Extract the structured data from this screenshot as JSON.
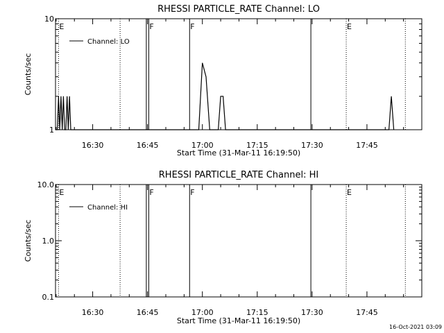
{
  "footer_timestamp": "16-Oct-2021 03:09",
  "chart_data": [
    {
      "type": "line",
      "title": "RHESSI PARTICLE_RATE Channel: LO",
      "xlabel": "Start Time (31-Mar-11 16:19:50)",
      "ylabel": "Counts/sec",
      "y_scale": "log",
      "ylim": [
        1,
        10
      ],
      "xlim": [
        "16:19:50",
        "18:00:00"
      ],
      "y_ticks": [
        {
          "value": 1,
          "label": "1"
        },
        {
          "value": 10,
          "label": "10"
        }
      ],
      "x_ticks": [
        {
          "time": "16:30",
          "label": "16:30"
        },
        {
          "time": "16:45",
          "label": "16:45"
        },
        {
          "time": "17:00",
          "label": "17:00"
        },
        {
          "time": "17:15",
          "label": "17:15"
        },
        {
          "time": "17:30",
          "label": "17:30"
        },
        {
          "time": "17:45",
          "label": "17:45"
        }
      ],
      "legend": {
        "placement": "top-left",
        "entries": [
          "Channel: LO"
        ]
      },
      "series": [
        {
          "name": "Channel: LO",
          "x": [
            "16:19:50",
            "16:20:20",
            "16:20:40",
            "16:21:00",
            "16:21:20",
            "16:21:40",
            "16:22:00",
            "16:22:20",
            "16:22:40",
            "16:23:00",
            "16:23:20",
            "16:23:40",
            "16:24:00",
            "16:24:20",
            "16:24:40",
            "16:25:00",
            "16:25:20",
            "16:58:00",
            "16:59:00",
            "17:00:00",
            "17:01:00",
            "17:02:00",
            "17:03:00",
            "17:04:20",
            "17:05:00",
            "17:05:40",
            "17:06:20",
            "17:51:00",
            "17:51:40",
            "17:52:20"
          ],
          "values": [
            1,
            1,
            2,
            1,
            2,
            1,
            2,
            1,
            1,
            2,
            1,
            2,
            1,
            1,
            1,
            1,
            1,
            1,
            1,
            4,
            3,
            1,
            1,
            1,
            2,
            2,
            1,
            1,
            2,
            1
          ]
        }
      ],
      "markers": [
        {
          "time": "16:20:40",
          "style": "dotted",
          "label": "E"
        },
        {
          "time": "16:37:30",
          "style": "dotted",
          "label": ""
        },
        {
          "time": "16:44:40",
          "style": "solid",
          "label": ""
        },
        {
          "time": "16:45:20",
          "style": "solid",
          "label": "F"
        },
        {
          "time": "16:56:30",
          "style": "solid",
          "label": "F"
        },
        {
          "time": "17:29:40",
          "style": "solid",
          "label": ""
        },
        {
          "time": "17:39:20",
          "style": "dotted",
          "label": "E"
        },
        {
          "time": "17:55:30",
          "style": "dotted",
          "label": ""
        }
      ]
    },
    {
      "type": "line",
      "title": "RHESSI PARTICLE_RATE Channel: HI",
      "xlabel": "Start Time (31-Mar-11 16:19:50)",
      "ylabel": "Counts/sec",
      "y_scale": "log",
      "ylim": [
        0.1,
        10
      ],
      "xlim": [
        "16:19:50",
        "18:00:00"
      ],
      "y_ticks": [
        {
          "value": 0.1,
          "label": "0.1"
        },
        {
          "value": 1,
          "label": "1.0"
        },
        {
          "value": 10,
          "label": "10.0"
        }
      ],
      "x_ticks": [
        {
          "time": "16:30",
          "label": "16:30"
        },
        {
          "time": "16:45",
          "label": "16:45"
        },
        {
          "time": "17:00",
          "label": "17:00"
        },
        {
          "time": "17:15",
          "label": "17:15"
        },
        {
          "time": "17:30",
          "label": "17:30"
        },
        {
          "time": "17:45",
          "label": "17:45"
        }
      ],
      "legend": {
        "placement": "top-left",
        "entries": [
          "Channel: HI"
        ]
      },
      "series": [
        {
          "name": "Channel: HI",
          "x": [],
          "values": []
        }
      ],
      "markers": [
        {
          "time": "16:20:40",
          "style": "dotted",
          "label": "E"
        },
        {
          "time": "16:37:30",
          "style": "dotted",
          "label": ""
        },
        {
          "time": "16:44:40",
          "style": "solid",
          "label": ""
        },
        {
          "time": "16:45:20",
          "style": "solid",
          "label": "F"
        },
        {
          "time": "16:56:30",
          "style": "solid",
          "label": "F"
        },
        {
          "time": "17:29:40",
          "style": "solid",
          "label": ""
        },
        {
          "time": "17:39:20",
          "style": "dotted",
          "label": "E"
        },
        {
          "time": "17:55:30",
          "style": "dotted",
          "label": ""
        }
      ]
    }
  ]
}
